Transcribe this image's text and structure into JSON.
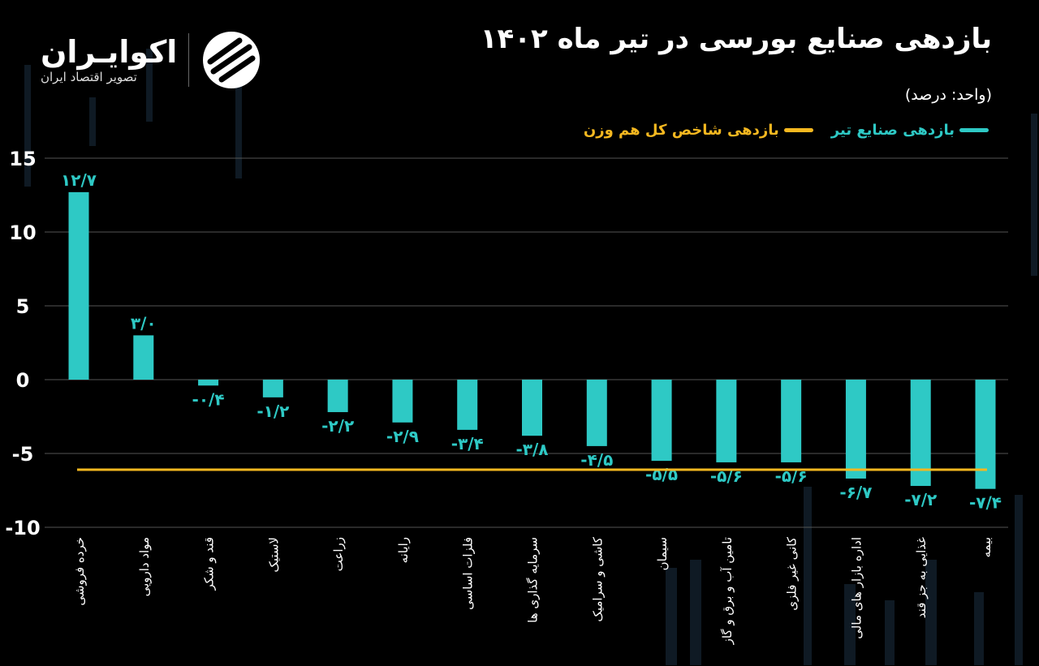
{
  "header": {
    "title": "بازدهی صنایع بورسی در تیر ماه ۱۴۰۲",
    "unit": "(واحد: درصد)"
  },
  "logo": {
    "name": "اکوایـران",
    "subtitle": "تصویر اقتصاد ایران"
  },
  "legend": [
    {
      "label": "بازدهی صنایع تیر",
      "color": "#2ec9c5"
    },
    {
      "label": "بازدهی شاخص کل هم وزن",
      "color": "#f5b820"
    }
  ],
  "chart_data": {
    "type": "bar",
    "title": "بازدهی صنایع بورسی در تیر ماه ۱۴۰۲",
    "ylabel": "(واحد: درصد)",
    "ylim": [
      -10,
      15
    ],
    "yticks": [
      "15",
      "10",
      "5",
      "0",
      "-5",
      "-10"
    ],
    "grid": true,
    "legend_position": "top-right",
    "categories": [
      "خرده فروشی",
      "مواد دارویی",
      "قند و شکر",
      "لاستیک",
      "زراعت",
      "رایانه",
      "فلزات اساسی",
      "سرمایه گذاری ها",
      "کاشی و سرامیک",
      "سیمان",
      "تامین آب و برق و گاز",
      "کانی غیر فلزی",
      "اداره بازار های مالی",
      "غذایی به جز قند",
      "بیمه"
    ],
    "series": [
      {
        "name": "بازدهی صنایع تیر",
        "color": "#2ec9c5",
        "values": [
          12.7,
          3.0,
          -0.4,
          -1.2,
          -2.2,
          -2.9,
          -3.4,
          -3.8,
          -4.5,
          -5.5,
          -5.6,
          -5.6,
          -6.7,
          -7.2,
          -7.4
        ],
        "labels": [
          "۱۲/۷",
          "۳/۰",
          "-۰/۴",
          "-۱/۲",
          "-۲/۲",
          "-۲/۹",
          "-۳/۴",
          "-۳/۸",
          "-۴/۵",
          "-۵/۵",
          "-۵/۶",
          "-۵/۶",
          "-۶/۷",
          "-۷/۲",
          "-۷/۴"
        ]
      },
      {
        "name": "بازدهی شاخص کل هم وزن",
        "color": "#f5b820",
        "type": "line",
        "value": -6.1
      }
    ]
  }
}
